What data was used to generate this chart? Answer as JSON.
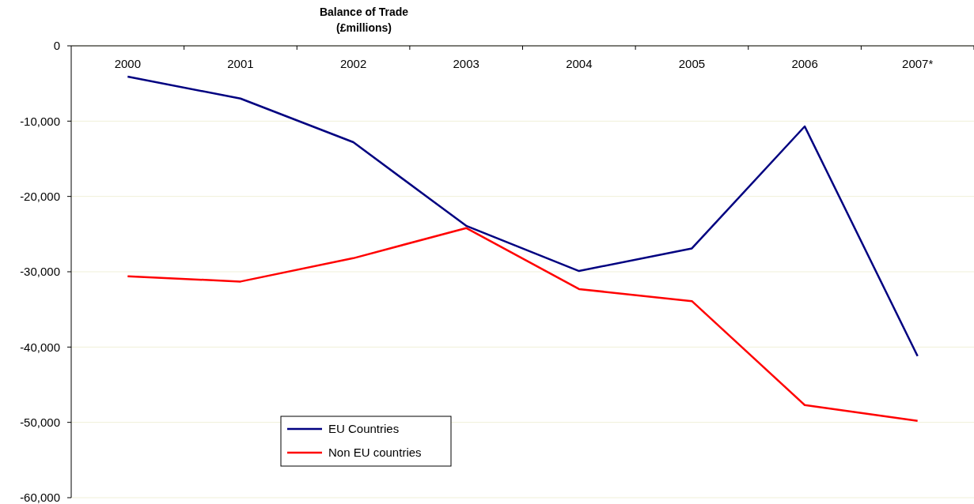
{
  "chart_data": {
    "type": "line",
    "title": "Balance of Trade",
    "subtitle": "(£millions)",
    "categories": [
      "2000",
      "2001",
      "2002",
      "2003",
      "2004",
      "2005",
      "2006",
      "2007*"
    ],
    "series": [
      {
        "name": "EU Countries",
        "color": "#000080",
        "values": [
          -4100,
          -7000,
          -12800,
          -23900,
          -29900,
          -26900,
          -10700,
          -41200
        ]
      },
      {
        "name": "Non EU countries",
        "color": "#ff0000",
        "values": [
          -30600,
          -31300,
          -28200,
          -24200,
          -32300,
          -33900,
          -47700,
          -49800
        ]
      }
    ],
    "ylim": [
      -60000,
      0
    ],
    "yticks": [
      {
        "value": -60000,
        "label": "-60,000"
      },
      {
        "value": -50000,
        "label": "-50,000"
      },
      {
        "value": -40000,
        "label": "-40,000"
      },
      {
        "value": -30000,
        "label": "-30,000"
      },
      {
        "value": -20000,
        "label": "-20,000"
      },
      {
        "value": -10000,
        "label": "-10,000"
      },
      0
    ],
    "grid": "y",
    "legend": "bottom left",
    "marker": "none",
    "line_style": "solid"
  }
}
